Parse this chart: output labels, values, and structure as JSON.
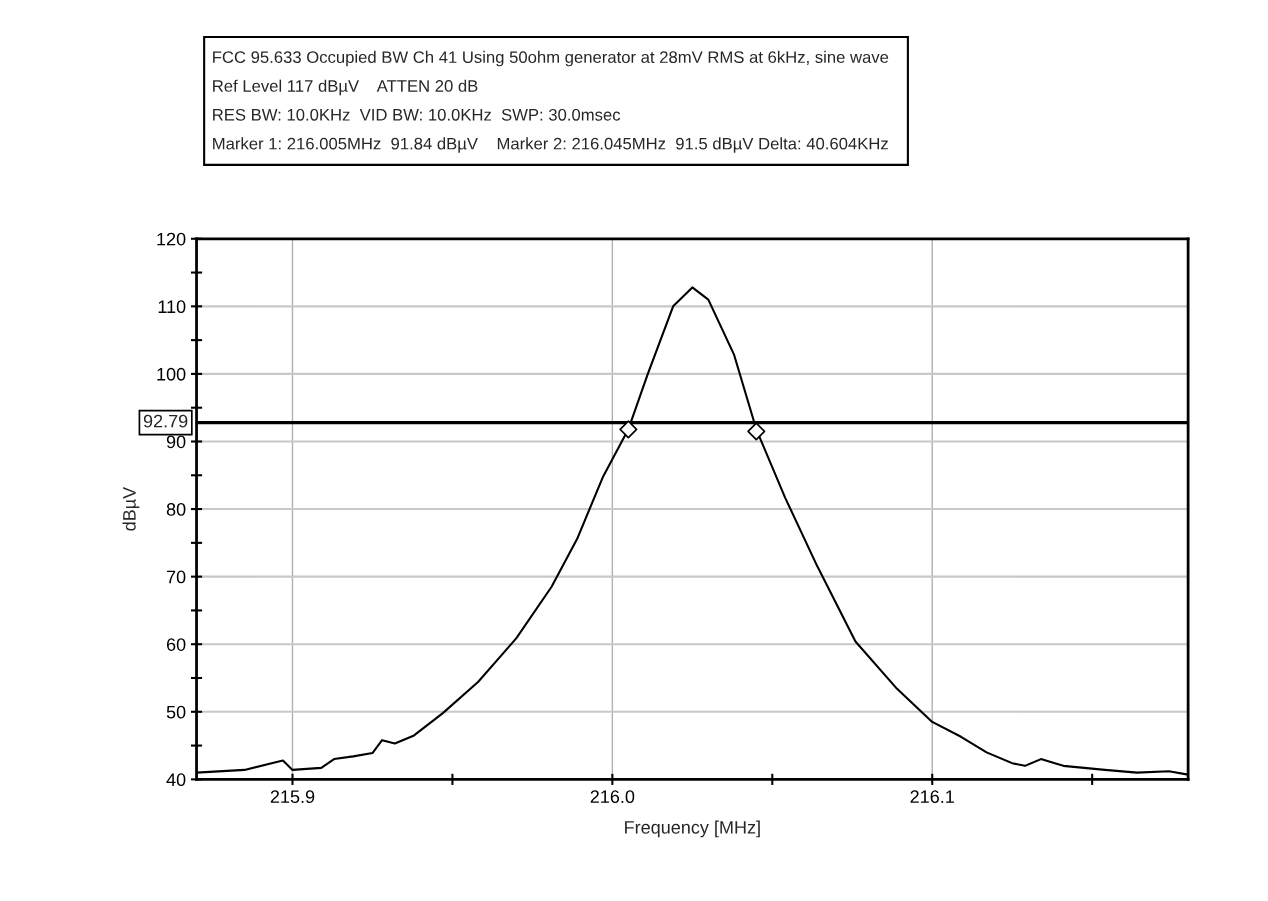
{
  "chart_data": {
    "type": "line",
    "title": "FCC 95.633 Occupied BW Ch 41 Using 50ohm generator at 28mV RMS at 6kHz, sine wave",
    "annotations": [
      "Ref Level 117 dBµV    ATTEN 20 dB",
      "RES BW: 10.0KHz  VID BW: 10.0KHz  SWP: 30.0msec",
      "Marker 1: 216.005MHz  91.84 dBµV    Marker 2: 216.045MHz  91.5 dBµV Delta: 40.604KHz"
    ],
    "xlabel": "Frequency [MHz]",
    "ylabel": "dBµV",
    "series": [
      {
        "type": "line",
        "color": "#000000",
        "marker": "none",
        "line_style": "solid",
        "x": [
          215.87,
          215.885,
          215.897,
          215.9,
          215.909,
          215.913,
          215.919,
          215.925,
          215.928,
          215.932,
          215.938,
          215.947,
          215.958,
          215.97,
          215.981,
          215.989,
          215.997,
          216.005,
          216.011,
          216.019,
          216.025,
          216.03,
          216.038,
          216.045,
          216.054,
          216.064,
          216.076,
          216.089,
          216.1,
          216.109,
          216.117,
          216.125,
          216.129,
          216.134,
          216.141,
          216.154,
          216.164,
          216.174,
          216.18
        ],
        "values": [
          41.0,
          41.4,
          42.8,
          41.4,
          41.7,
          43.0,
          43.4,
          43.9,
          45.8,
          45.3,
          46.5,
          49.8,
          54.4,
          60.9,
          68.5,
          75.6,
          84.7,
          91.8,
          99.9,
          110.0,
          112.8,
          111.0,
          102.9,
          91.8,
          81.7,
          71.6,
          60.4,
          53.4,
          48.5,
          46.3,
          44.0,
          42.4,
          42.0,
          43.0,
          42.0,
          41.4,
          41.0,
          41.2,
          40.7
        ]
      },
      {
        "type": "scatter",
        "color": "#000000",
        "marker": "diamond",
        "x": [
          216.005,
          216.045
        ],
        "values": [
          91.8,
          91.5
        ]
      }
    ],
    "ref_lines": [
      {
        "axis": "y",
        "value": 92.79,
        "label": "92.79",
        "color": "#000000"
      }
    ],
    "xlim": [
      215.87,
      216.18
    ],
    "xticks": [
      215.9,
      {
        "value": 215.95,
        "label": null
      },
      {
        "value": 216.0,
        "label": "216.0"
      },
      {
        "value": 216.05,
        "label": null
      },
      216.1,
      {
        "value": 216.15,
        "label": null
      }
    ],
    "ylim": [
      40,
      120
    ],
    "yticks": [
      40,
      {
        "value": 45,
        "label": null
      },
      50,
      {
        "value": 55,
        "label": null
      },
      60,
      {
        "value": 65,
        "label": null
      },
      70,
      {
        "value": 75,
        "label": null
      },
      80,
      {
        "value": 85,
        "label": null
      },
      90,
      {
        "value": 95,
        "label": null
      },
      100,
      {
        "value": 105,
        "label": null
      },
      110,
      {
        "value": 115,
        "label": null
      },
      120
    ],
    "grid": true,
    "legend": false
  }
}
